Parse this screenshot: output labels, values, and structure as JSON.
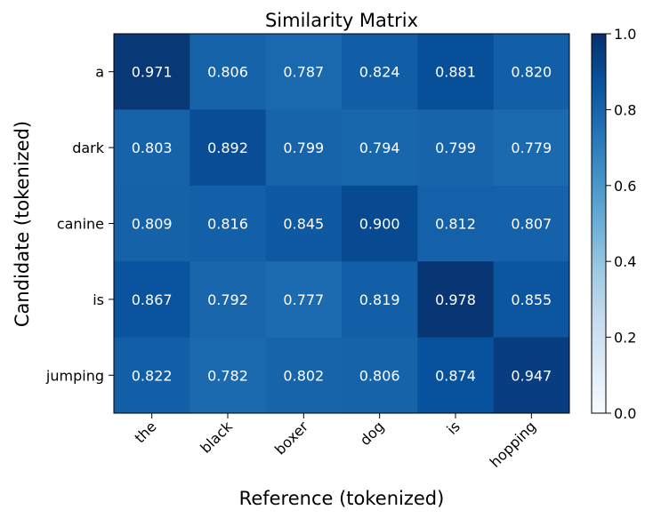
{
  "chart_data": {
    "type": "heatmap",
    "title": "Similarity Matrix",
    "xlabel": "Reference (tokenized)",
    "ylabel": "Candidate (tokenized)",
    "x_categories": [
      "the",
      "black",
      "boxer",
      "dog",
      "is",
      "hopping"
    ],
    "y_categories": [
      "a",
      "dark",
      "canine",
      "is",
      "jumping"
    ],
    "values": [
      [
        0.971,
        0.806,
        0.787,
        0.824,
        0.881,
        0.82
      ],
      [
        0.803,
        0.892,
        0.799,
        0.794,
        0.799,
        0.779
      ],
      [
        0.809,
        0.816,
        0.845,
        0.9,
        0.812,
        0.807
      ],
      [
        0.867,
        0.792,
        0.777,
        0.819,
        0.978,
        0.855
      ],
      [
        0.822,
        0.782,
        0.802,
        0.806,
        0.874,
        0.947
      ]
    ],
    "value_labels": [
      [
        "0.971",
        "0.806",
        "0.787",
        "0.824",
        "0.881",
        "0.820"
      ],
      [
        "0.803",
        "0.892",
        "0.799",
        "0.794",
        "0.799",
        "0.779"
      ],
      [
        "0.809",
        "0.816",
        "0.845",
        "0.900",
        "0.812",
        "0.807"
      ],
      [
        "0.867",
        "0.792",
        "0.777",
        "0.819",
        "0.978",
        "0.855"
      ],
      [
        "0.822",
        "0.782",
        "0.802",
        "0.806",
        "0.874",
        "0.947"
      ]
    ],
    "colorscale": "Blues",
    "color_range": [
      0.0,
      1.0
    ],
    "colorbar_ticks": [
      0.0,
      0.2,
      0.4,
      0.6,
      0.8,
      1.0
    ],
    "colorbar_tick_labels": [
      "0.0",
      "0.2",
      "0.4",
      "0.6",
      "0.8",
      "1.0"
    ],
    "grid": false,
    "colorbar_position": "right"
  }
}
